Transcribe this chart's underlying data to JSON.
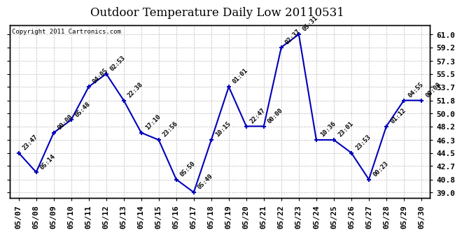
{
  "title": "Outdoor Temperature Daily Low 20110531",
  "copyright": "Copyright 2011 Cartronics.com",
  "dates": [
    "05/07",
    "05/08",
    "05/09",
    "05/10",
    "05/11",
    "05/12",
    "05/13",
    "05/14",
    "05/15",
    "05/16",
    "05/17",
    "05/18",
    "05/19",
    "05/20",
    "05/21",
    "05/22",
    "05/23",
    "05/24",
    "05/25",
    "05/26",
    "05/27",
    "05/28",
    "05/29",
    "05/30"
  ],
  "values": [
    44.5,
    41.8,
    47.3,
    49.1,
    53.7,
    55.5,
    51.8,
    47.3,
    46.3,
    40.8,
    39.0,
    46.3,
    53.7,
    48.2,
    48.2,
    59.2,
    61.0,
    46.3,
    46.3,
    44.5,
    40.8,
    48.2,
    51.8,
    51.8
  ],
  "labels": [
    "23:47",
    "05:14",
    "00:00",
    "05:48",
    "04:05",
    "02:53",
    "22:38",
    "17:10",
    "23:56",
    "05:50",
    "05:49",
    "10:15",
    "01:01",
    "22:47",
    "00:00",
    "02:37",
    "05:31",
    "10:36",
    "23:01",
    "23:53",
    "00:23",
    "01:12",
    "04:55",
    "00:00"
  ],
  "line_color": "#0000bb",
  "marker_color": "#0000bb",
  "background_color": "#ffffff",
  "grid_color": "#bbbbbb",
  "title_fontsize": 12,
  "label_fontsize": 6.5,
  "tick_fontsize": 8,
  "yticks": [
    39.0,
    40.8,
    42.7,
    44.5,
    46.3,
    48.2,
    50.0,
    51.8,
    53.7,
    55.5,
    57.3,
    59.2,
    61.0
  ],
  "ylim": [
    38.2,
    62.3
  ],
  "copyright_fontsize": 6.5
}
